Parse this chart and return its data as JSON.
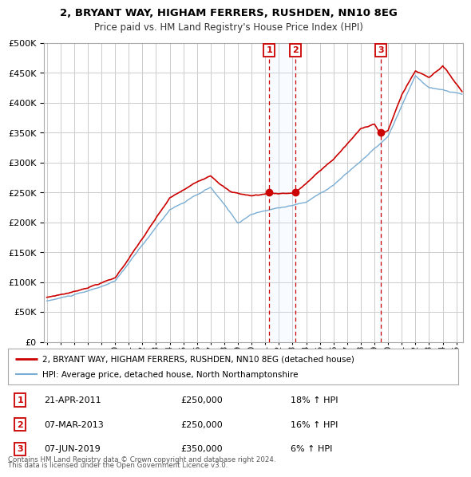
{
  "title": "2, BRYANT WAY, HIGHAM FERRERS, RUSHDEN, NN10 8EG",
  "subtitle": "Price paid vs. HM Land Registry's House Price Index (HPI)",
  "legend_line1": "2, BRYANT WAY, HIGHAM FERRERS, RUSHDEN, NN10 8EG (detached house)",
  "legend_line2": "HPI: Average price, detached house, North Northamptonshire",
  "footer1": "Contains HM Land Registry data © Crown copyright and database right 2024.",
  "footer2": "This data is licensed under the Open Government Licence v3.0.",
  "transactions": [
    {
      "num": "1",
      "date": "21-APR-2011",
      "price": "£250,000",
      "change": "18% ↑ HPI",
      "year": 2011.3
    },
    {
      "num": "2",
      "date": "07-MAR-2013",
      "price": "£250,000",
      "change": "16% ↑ HPI",
      "year": 2013.2
    },
    {
      "num": "3",
      "date": "07-JUN-2019",
      "price": "£350,000",
      "change": "6% ↑ HPI",
      "year": 2019.45
    }
  ],
  "trans_prices": [
    250000,
    250000,
    350000
  ],
  "red_color": "#cc0000",
  "blue_color": "#7aadd4",
  "shade_color": "#ddeeff",
  "grid_color": "#cccccc",
  "background_color": "#ffffff",
  "ylim": [
    0,
    500000
  ],
  "yticks": [
    0,
    50000,
    100000,
    150000,
    200000,
    250000,
    300000,
    350000,
    400000,
    450000,
    500000
  ],
  "xlim_start": 1994.8,
  "xlim_end": 2025.5
}
